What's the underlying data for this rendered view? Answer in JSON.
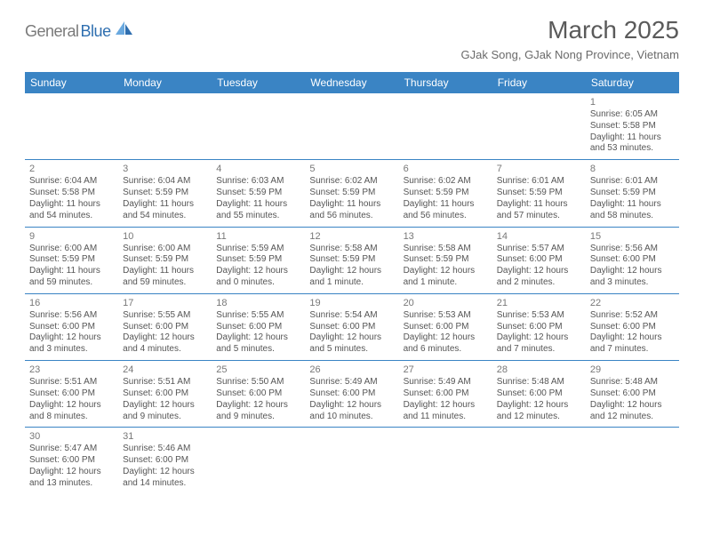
{
  "logo": {
    "gray": "General",
    "blue": "Blue"
  },
  "title": "March 2025",
  "location": "GJak Song, GJak Nong Province, Vietnam",
  "colors": {
    "header_bg": "#3a84c4",
    "header_text": "#ffffff",
    "cell_border": "#3a84c4",
    "text_gray": "#555555",
    "title_gray": "#5a5a5a",
    "logo_gray": "#7a7a7a",
    "logo_blue": "#2f6fb0"
  },
  "weekdays": [
    "Sunday",
    "Monday",
    "Tuesday",
    "Wednesday",
    "Thursday",
    "Friday",
    "Saturday"
  ],
  "grid": [
    [
      {
        "d": "",
        "sr": "",
        "ss": "",
        "dl": ""
      },
      {
        "d": "",
        "sr": "",
        "ss": "",
        "dl": ""
      },
      {
        "d": "",
        "sr": "",
        "ss": "",
        "dl": ""
      },
      {
        "d": "",
        "sr": "",
        "ss": "",
        "dl": ""
      },
      {
        "d": "",
        "sr": "",
        "ss": "",
        "dl": ""
      },
      {
        "d": "",
        "sr": "",
        "ss": "",
        "dl": ""
      },
      {
        "d": "1",
        "sr": "6:05 AM",
        "ss": "5:58 PM",
        "dl": "11 hours and 53 minutes."
      }
    ],
    [
      {
        "d": "2",
        "sr": "6:04 AM",
        "ss": "5:58 PM",
        "dl": "11 hours and 54 minutes."
      },
      {
        "d": "3",
        "sr": "6:04 AM",
        "ss": "5:59 PM",
        "dl": "11 hours and 54 minutes."
      },
      {
        "d": "4",
        "sr": "6:03 AM",
        "ss": "5:59 PM",
        "dl": "11 hours and 55 minutes."
      },
      {
        "d": "5",
        "sr": "6:02 AM",
        "ss": "5:59 PM",
        "dl": "11 hours and 56 minutes."
      },
      {
        "d": "6",
        "sr": "6:02 AM",
        "ss": "5:59 PM",
        "dl": "11 hours and 56 minutes."
      },
      {
        "d": "7",
        "sr": "6:01 AM",
        "ss": "5:59 PM",
        "dl": "11 hours and 57 minutes."
      },
      {
        "d": "8",
        "sr": "6:01 AM",
        "ss": "5:59 PM",
        "dl": "11 hours and 58 minutes."
      }
    ],
    [
      {
        "d": "9",
        "sr": "6:00 AM",
        "ss": "5:59 PM",
        "dl": "11 hours and 59 minutes."
      },
      {
        "d": "10",
        "sr": "6:00 AM",
        "ss": "5:59 PM",
        "dl": "11 hours and 59 minutes."
      },
      {
        "d": "11",
        "sr": "5:59 AM",
        "ss": "5:59 PM",
        "dl": "12 hours and 0 minutes."
      },
      {
        "d": "12",
        "sr": "5:58 AM",
        "ss": "5:59 PM",
        "dl": "12 hours and 1 minute."
      },
      {
        "d": "13",
        "sr": "5:58 AM",
        "ss": "5:59 PM",
        "dl": "12 hours and 1 minute."
      },
      {
        "d": "14",
        "sr": "5:57 AM",
        "ss": "6:00 PM",
        "dl": "12 hours and 2 minutes."
      },
      {
        "d": "15",
        "sr": "5:56 AM",
        "ss": "6:00 PM",
        "dl": "12 hours and 3 minutes."
      }
    ],
    [
      {
        "d": "16",
        "sr": "5:56 AM",
        "ss": "6:00 PM",
        "dl": "12 hours and 3 minutes."
      },
      {
        "d": "17",
        "sr": "5:55 AM",
        "ss": "6:00 PM",
        "dl": "12 hours and 4 minutes."
      },
      {
        "d": "18",
        "sr": "5:55 AM",
        "ss": "6:00 PM",
        "dl": "12 hours and 5 minutes."
      },
      {
        "d": "19",
        "sr": "5:54 AM",
        "ss": "6:00 PM",
        "dl": "12 hours and 5 minutes."
      },
      {
        "d": "20",
        "sr": "5:53 AM",
        "ss": "6:00 PM",
        "dl": "12 hours and 6 minutes."
      },
      {
        "d": "21",
        "sr": "5:53 AM",
        "ss": "6:00 PM",
        "dl": "12 hours and 7 minutes."
      },
      {
        "d": "22",
        "sr": "5:52 AM",
        "ss": "6:00 PM",
        "dl": "12 hours and 7 minutes."
      }
    ],
    [
      {
        "d": "23",
        "sr": "5:51 AM",
        "ss": "6:00 PM",
        "dl": "12 hours and 8 minutes."
      },
      {
        "d": "24",
        "sr": "5:51 AM",
        "ss": "6:00 PM",
        "dl": "12 hours and 9 minutes."
      },
      {
        "d": "25",
        "sr": "5:50 AM",
        "ss": "6:00 PM",
        "dl": "12 hours and 9 minutes."
      },
      {
        "d": "26",
        "sr": "5:49 AM",
        "ss": "6:00 PM",
        "dl": "12 hours and 10 minutes."
      },
      {
        "d": "27",
        "sr": "5:49 AM",
        "ss": "6:00 PM",
        "dl": "12 hours and 11 minutes."
      },
      {
        "d": "28",
        "sr": "5:48 AM",
        "ss": "6:00 PM",
        "dl": "12 hours and 12 minutes."
      },
      {
        "d": "29",
        "sr": "5:48 AM",
        "ss": "6:00 PM",
        "dl": "12 hours and 12 minutes."
      }
    ],
    [
      {
        "d": "30",
        "sr": "5:47 AM",
        "ss": "6:00 PM",
        "dl": "12 hours and 13 minutes."
      },
      {
        "d": "31",
        "sr": "5:46 AM",
        "ss": "6:00 PM",
        "dl": "12 hours and 14 minutes."
      },
      {
        "d": "",
        "sr": "",
        "ss": "",
        "dl": ""
      },
      {
        "d": "",
        "sr": "",
        "ss": "",
        "dl": ""
      },
      {
        "d": "",
        "sr": "",
        "ss": "",
        "dl": ""
      },
      {
        "d": "",
        "sr": "",
        "ss": "",
        "dl": ""
      },
      {
        "d": "",
        "sr": "",
        "ss": "",
        "dl": ""
      }
    ]
  ]
}
